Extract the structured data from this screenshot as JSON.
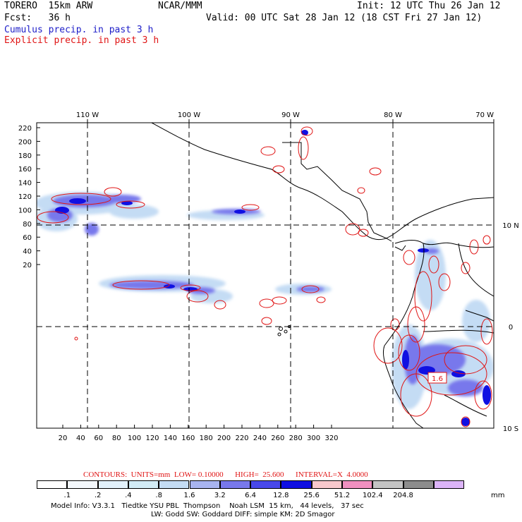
{
  "header": {
    "model": "TORERO  15km ARW",
    "org": "NCAR/MMM",
    "init": "Init: 12 UTC Thu 26 Jan 12",
    "fcst": "Fcst:   36 h",
    "valid": "Valid: 00 UTC Sat 28 Jan 12 (18 CST Fri 27 Jan 12)",
    "legend_cumulus": "Cumulus precip. in past 3 h",
    "legend_explicit": "Explicit precip. in past 3 h",
    "colors": {
      "cumulus": "#1d1dc8",
      "explicit": "#e01414"
    }
  },
  "map": {
    "lon_labels": [
      "110 W",
      "100 W",
      "90 W",
      "80 W",
      "70 W"
    ],
    "lat_labels": [
      "10 N",
      "0",
      "10 S"
    ],
    "y_ticks": [
      "220",
      "200",
      "180",
      "160",
      "140",
      "120",
      "100",
      "80",
      "60",
      "40",
      "20"
    ],
    "x_ticks": [
      "20",
      "40",
      "60",
      "80",
      "100",
      "120",
      "140",
      "160",
      "180",
      "200",
      "220",
      "240",
      "260",
      "280",
      "300",
      "320"
    ],
    "contour_label": "1.6"
  },
  "scale": {
    "contours_line": "CONTOURS:  UNITS=mm  LOW= 0.10000      HIGH=  25.600      INTERVAL=X  4.0000",
    "bins": [
      {
        "label": ".1",
        "color": "#ffffff"
      },
      {
        "label": ".2",
        "color": "#f3f8fc"
      },
      {
        "label": ".4",
        "color": "#e2f1fb"
      },
      {
        "label": ".8",
        "color": "#d2ecf6"
      },
      {
        "label": "1.6",
        "color": "#c4dcf4"
      },
      {
        "label": "3.2",
        "color": "#a8b4f0"
      },
      {
        "label": "6.4",
        "color": "#7878ec"
      },
      {
        "label": "12.8",
        "color": "#4848ea"
      },
      {
        "label": "25.6",
        "color": "#1010e2"
      },
      {
        "label": "51.2",
        "color": "#f8c8cc"
      },
      {
        "label": "102.4",
        "color": "#f090c0"
      },
      {
        "label": "204.8",
        "color": "#c4c4c4"
      },
      {
        "label": "",
        "color": "#8c8c8c"
      },
      {
        "label": "",
        "color": "#dcb4f8"
      }
    ],
    "unit": "mm"
  },
  "footer": {
    "line1": "Model Info: V3.3.1   Tiedtke YSU PBL  Thompson    Noah LSM  15 km,   44 levels,   37 sec",
    "line2": "LW: Godd SW: Goddard DIFF: simple KM: 2D Smagor"
  }
}
